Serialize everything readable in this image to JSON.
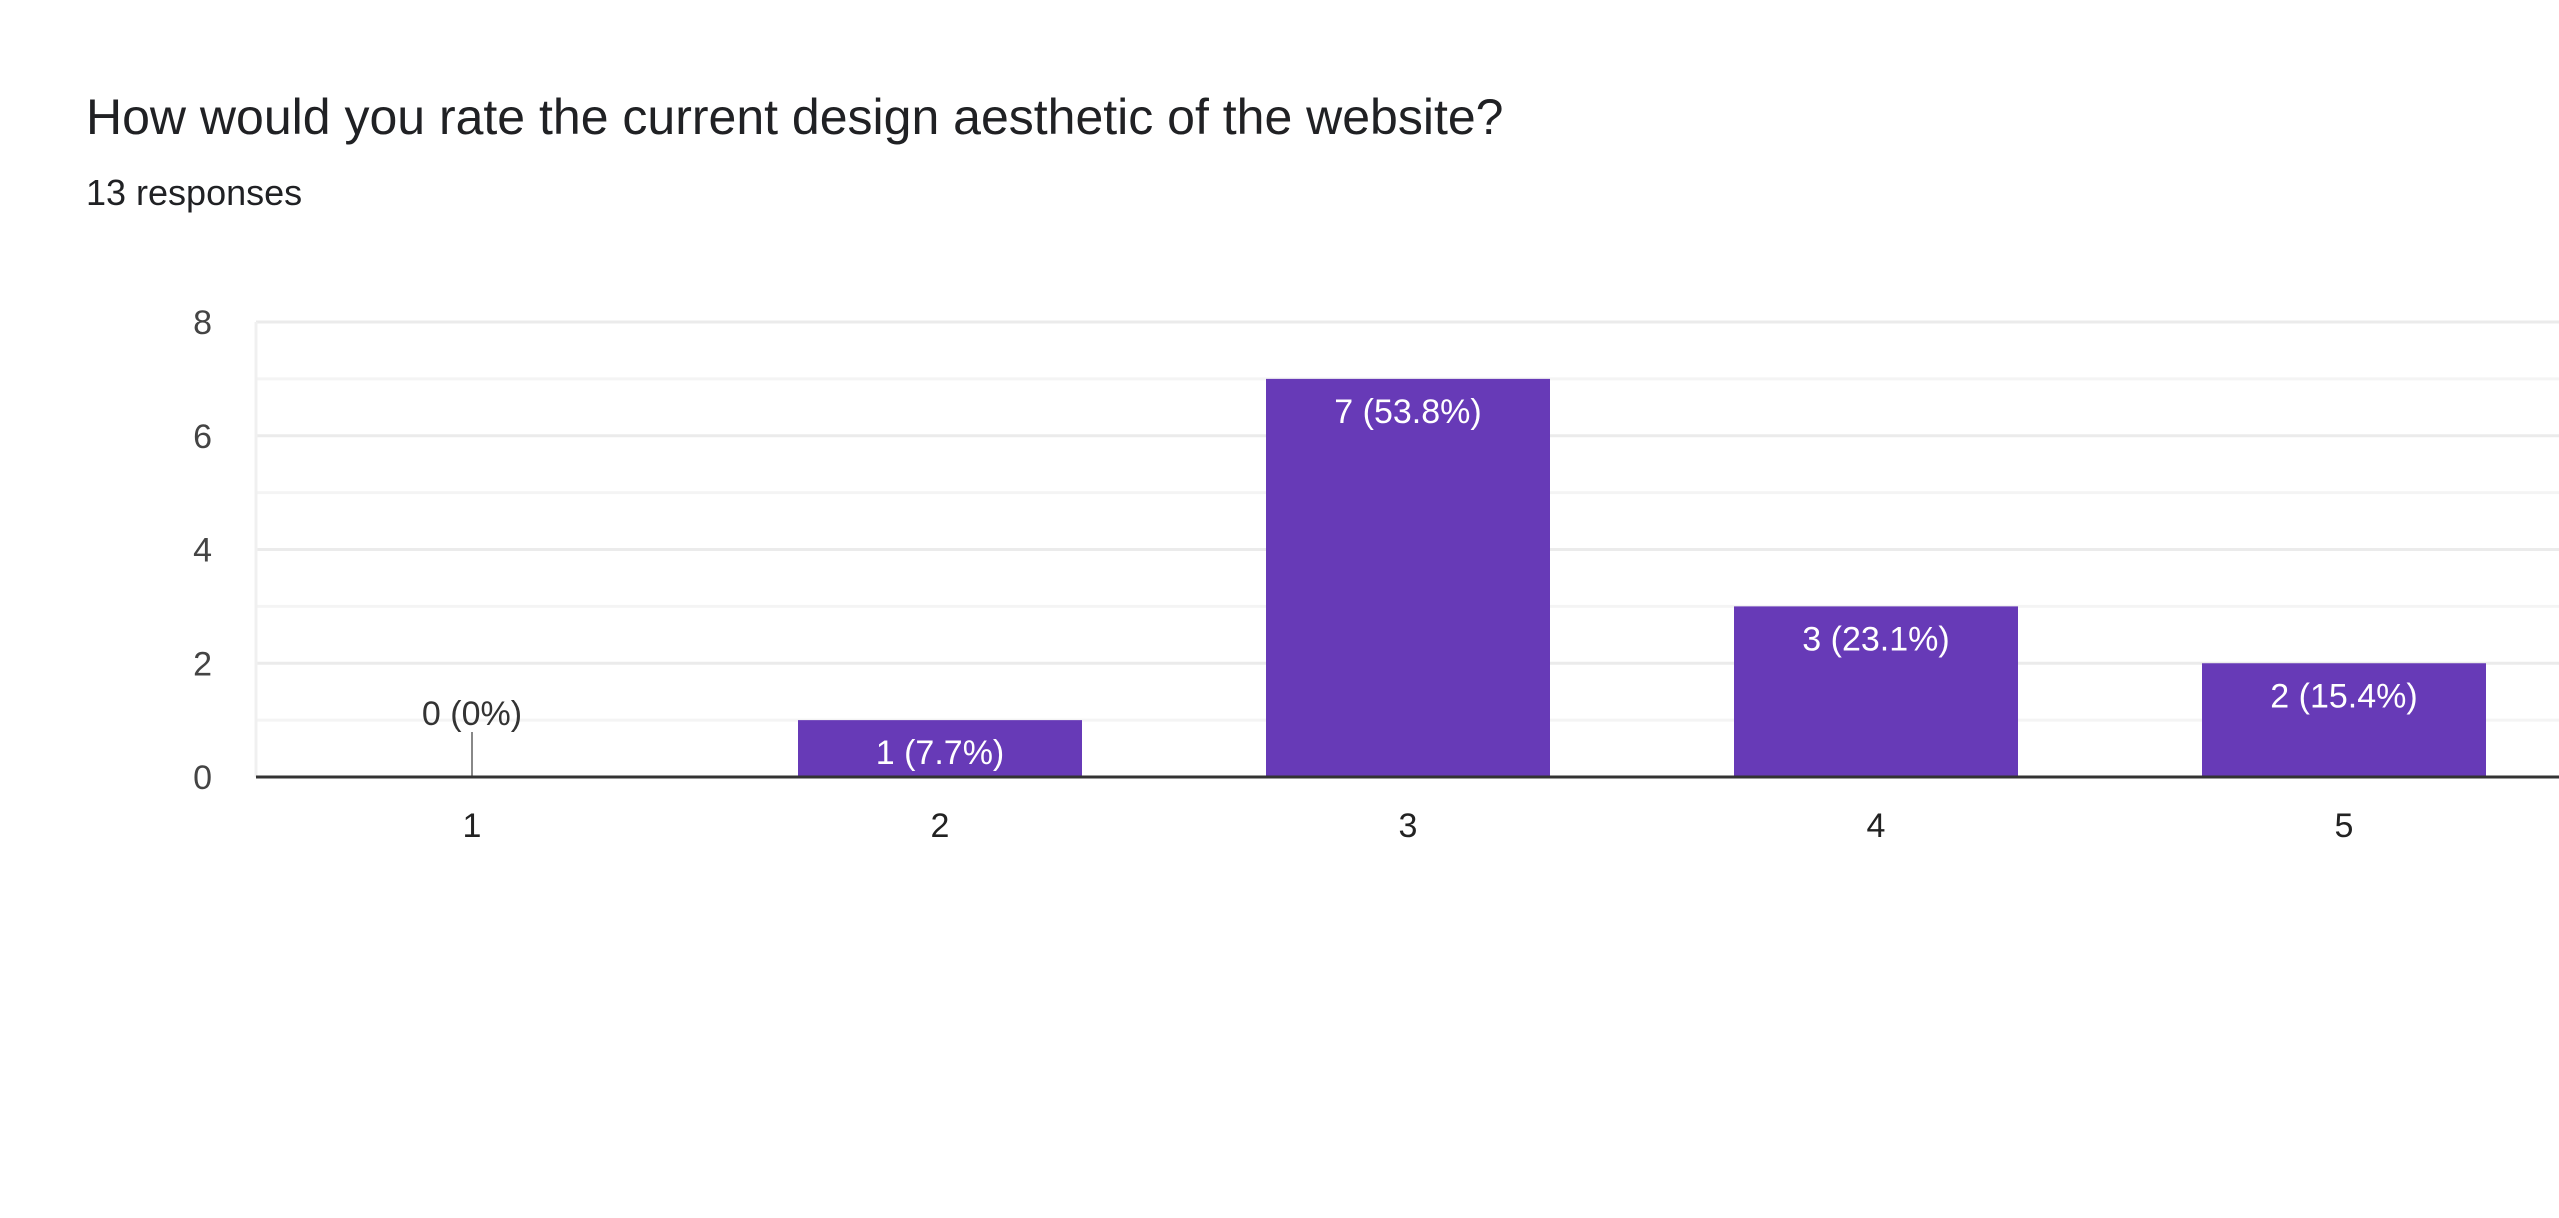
{
  "chart_data": {
    "type": "bar",
    "title": "How would you rate the current design aesthetic of the website?",
    "subtitle": "13 responses",
    "categories": [
      "1",
      "2",
      "3",
      "4",
      "5"
    ],
    "values": [
      0,
      1,
      7,
      3,
      2
    ],
    "data_labels": [
      "0 (0%)",
      "1 (7.7%)",
      "7 (53.8%)",
      "3 (23.1%)",
      "2 (15.4%)"
    ],
    "xlabel": "",
    "ylabel": "",
    "ylim": [
      0,
      8
    ],
    "yticks": [
      "0",
      "2",
      "4",
      "6",
      "8"
    ],
    "grid": true,
    "bar_color": "#673ab7"
  }
}
